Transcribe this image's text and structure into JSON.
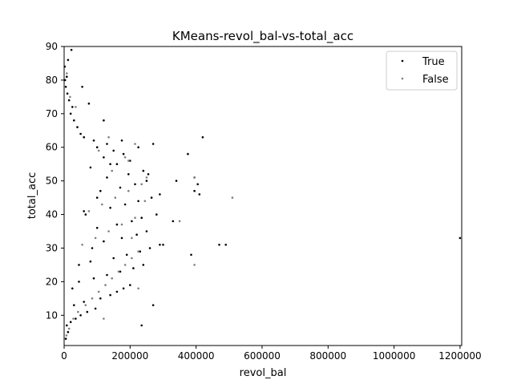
{
  "chart_data": {
    "type": "scatter",
    "title": "KMeans-revol_bal-vs-total_acc",
    "xlabel": "revol_bal",
    "ylabel": "total_acc",
    "xlim": [
      0,
      1205000
    ],
    "ylim": [
      1,
      90
    ],
    "xticks": [
      0,
      200000,
      400000,
      600000,
      800000,
      1000000,
      1200000
    ],
    "xtick_labels": [
      "0",
      "200000",
      "400000",
      "600000",
      "800000",
      "1000000",
      "1200000"
    ],
    "yticks": [
      10,
      20,
      30,
      40,
      50,
      60,
      70,
      80,
      90
    ],
    "ytick_labels": [
      "10",
      "20",
      "30",
      "40",
      "50",
      "60",
      "70",
      "80",
      "90"
    ],
    "grid": false,
    "legend_position": "top-right",
    "series": [
      {
        "name": "True",
        "color": "#000000",
        "points": [
          [
            5000,
            3
          ],
          [
            12000,
            5
          ],
          [
            8000,
            7
          ],
          [
            20000,
            8
          ],
          [
            35000,
            9
          ],
          [
            50000,
            10
          ],
          [
            70000,
            11
          ],
          [
            95000,
            12
          ],
          [
            30000,
            13
          ],
          [
            60000,
            14
          ],
          [
            110000,
            15
          ],
          [
            140000,
            16
          ],
          [
            160000,
            17
          ],
          [
            180000,
            18
          ],
          [
            200000,
            19
          ],
          [
            45000,
            20
          ],
          [
            90000,
            21
          ],
          [
            130000,
            22
          ],
          [
            170000,
            23
          ],
          [
            210000,
            24
          ],
          [
            240000,
            25
          ],
          [
            80000,
            26
          ],
          [
            150000,
            27
          ],
          [
            190000,
            28
          ],
          [
            230000,
            29
          ],
          [
            260000,
            30
          ],
          [
            290000,
            31
          ],
          [
            120000,
            32
          ],
          [
            175000,
            33
          ],
          [
            220000,
            34
          ],
          [
            250000,
            35
          ],
          [
            100000,
            36
          ],
          [
            160000,
            37
          ],
          [
            205000,
            38
          ],
          [
            235000,
            39
          ],
          [
            280000,
            40
          ],
          [
            60000,
            41
          ],
          [
            140000,
            42
          ],
          [
            185000,
            43
          ],
          [
            225000,
            44
          ],
          [
            265000,
            45
          ],
          [
            290000,
            46
          ],
          [
            110000,
            47
          ],
          [
            170000,
            48
          ],
          [
            215000,
            49
          ],
          [
            250000,
            50
          ],
          [
            130000,
            51
          ],
          [
            195000,
            52
          ],
          [
            240000,
            53
          ],
          [
            80000,
            54
          ],
          [
            160000,
            55
          ],
          [
            200000,
            56
          ],
          [
            120000,
            57
          ],
          [
            180000,
            58
          ],
          [
            150000,
            59
          ],
          [
            100000,
            60
          ],
          [
            130000,
            61
          ],
          [
            90000,
            62
          ],
          [
            60000,
            63
          ],
          [
            50000,
            64
          ],
          [
            40000,
            66
          ],
          [
            30000,
            68
          ],
          [
            20000,
            70
          ],
          [
            25000,
            72
          ],
          [
            15000,
            74
          ],
          [
            10000,
            76
          ],
          [
            5000,
            78
          ],
          [
            3000,
            80
          ],
          [
            8000,
            81
          ],
          [
            2000,
            84
          ],
          [
            12000,
            86
          ],
          [
            22000,
            89
          ],
          [
            420000,
            63
          ],
          [
            375000,
            58
          ],
          [
            270000,
            61
          ],
          [
            340000,
            50
          ],
          [
            395000,
            51
          ],
          [
            410000,
            46
          ],
          [
            385000,
            28
          ],
          [
            470000,
            31
          ],
          [
            490000,
            31
          ],
          [
            235000,
            7
          ],
          [
            270000,
            13
          ],
          [
            300000,
            31
          ],
          [
            330000,
            38
          ],
          [
            405000,
            49
          ],
          [
            395000,
            47
          ],
          [
            55000,
            78
          ],
          [
            75000,
            73
          ],
          [
            120000,
            68
          ],
          [
            65000,
            40
          ],
          [
            85000,
            30
          ],
          [
            45000,
            25
          ],
          [
            25000,
            18
          ],
          [
            100000,
            45
          ],
          [
            140000,
            55
          ],
          [
            175000,
            62
          ],
          [
            225000,
            60
          ],
          [
            255000,
            52
          ],
          [
            1200000,
            33
          ]
        ]
      },
      {
        "name": "False",
        "color": "#7f7f7f",
        "points": [
          [
            7000,
            4
          ],
          [
            15000,
            6
          ],
          [
            28000,
            9
          ],
          [
            42000,
            11
          ],
          [
            65000,
            13
          ],
          [
            85000,
            15
          ],
          [
            105000,
            17
          ],
          [
            125000,
            19
          ],
          [
            145000,
            21
          ],
          [
            165000,
            23
          ],
          [
            185000,
            25
          ],
          [
            205000,
            27
          ],
          [
            225000,
            29
          ],
          [
            55000,
            31
          ],
          [
            95000,
            33
          ],
          [
            135000,
            35
          ],
          [
            175000,
            37
          ],
          [
            215000,
            39
          ],
          [
            75000,
            41
          ],
          [
            115000,
            43
          ],
          [
            155000,
            45
          ],
          [
            195000,
            47
          ],
          [
            235000,
            49
          ],
          [
            145000,
            53
          ],
          [
            185000,
            57
          ],
          [
            105000,
            59
          ],
          [
            135000,
            63
          ],
          [
            215000,
            61
          ],
          [
            245000,
            44
          ],
          [
            195000,
            56
          ],
          [
            395000,
            25
          ],
          [
            350000,
            38
          ],
          [
            395000,
            51
          ],
          [
            510000,
            45
          ],
          [
            120000,
            9
          ],
          [
            35000,
            72
          ],
          [
            18000,
            75
          ],
          [
            8000,
            82
          ],
          [
            205000,
            33
          ],
          [
            225000,
            18
          ],
          [
            250000,
            51
          ]
        ]
      }
    ]
  }
}
